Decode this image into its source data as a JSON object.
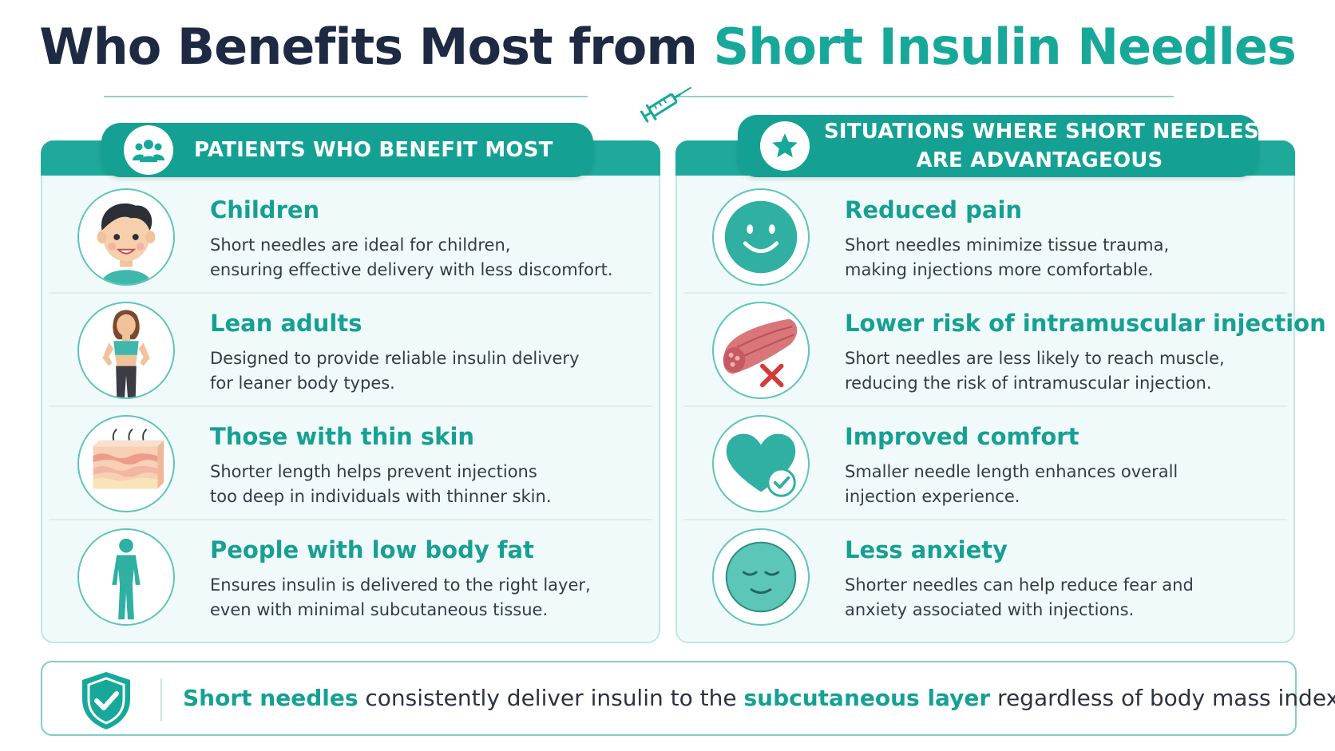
{
  "title": {
    "part1": "Who Benefits Most from ",
    "part2": "Short Insulin Needles"
  },
  "icons": {
    "divider": "syringe-icon",
    "left_header": "people-group-icon",
    "right_header": "star-icon",
    "footer": "shield-check-icon"
  },
  "colors": {
    "teal": "#17a89a",
    "navy": "#1e2a44",
    "panel_bg": "#f1fafa"
  },
  "left_panel": {
    "header": "PATIENTS WHO BENEFIT MOST",
    "items": [
      {
        "title": "Children",
        "line1": "Short needles are ideal for children,",
        "line2": "ensuring effective delivery with less discomfort.",
        "icon": "child-face-icon"
      },
      {
        "title": "Lean adults",
        "line1": "Designed to provide reliable insulin delivery",
        "line2": "for leaner body types.",
        "icon": "lean-woman-icon"
      },
      {
        "title": "Those with thin skin",
        "line1": "Shorter length helps prevent injections",
        "line2": "too deep in individuals with thinner skin.",
        "icon": "skin-layers-icon"
      },
      {
        "title": "People with low body fat",
        "line1": "Ensures insulin is delivered to the right layer,",
        "line2": "even with minimal subcutaneous tissue.",
        "icon": "body-silhouette-icon"
      }
    ]
  },
  "right_panel": {
    "header_line1": "SITUATIONS WHERE SHORT NEEDLES",
    "header_line2": "ARE ADVANTAGEOUS",
    "items": [
      {
        "title": "Reduced pain",
        "line1": "Short needles minimize tissue trauma,",
        "line2": "making injections more comfortable.",
        "icon": "smiley-face-icon"
      },
      {
        "title": "Lower risk of intramuscular injection",
        "line1": "Short needles are less likely to reach muscle,",
        "line2": "reducing the risk of intramuscular injection.",
        "icon": "muscle-cross-icon"
      },
      {
        "title": "Improved comfort",
        "line1": "Smaller needle length enhances overall",
        "line2": "injection experience.",
        "icon": "heart-check-icon"
      },
      {
        "title": "Less anxiety",
        "line1": "Shorter needles can help reduce fear and",
        "line2": "anxiety associated with injections.",
        "icon": "calm-face-icon"
      }
    ]
  },
  "footer": {
    "hl1": "Short needles",
    "text1": " consistently deliver insulin to the ",
    "hl2": "subcutaneous layer",
    "text2": " regardless of body mass index."
  }
}
